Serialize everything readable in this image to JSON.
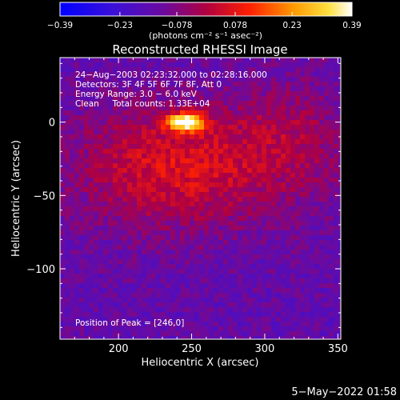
{
  "chart_data": {
    "type": "heatmap",
    "title": "Reconstructed RHESSI Image",
    "colorbar": {
      "tick_labels": [
        "−0.39",
        "−0.23",
        "−0.078",
        "0.078",
        "0.23",
        "0.39"
      ],
      "tick_values": [
        -0.39,
        -0.23,
        -0.078,
        0.078,
        0.23,
        0.39
      ],
      "range": [
        -0.39,
        0.39
      ],
      "units_label": "(photons cm⁻² s⁻¹ asec⁻²)",
      "colormap": "blue-purple-red-yellow-white"
    },
    "xlabel": "Heliocentric X (arcsec)",
    "ylabel": "Heliocentric Y (arcsec)",
    "xlim": [
      160,
      352
    ],
    "ylim": [
      -148,
      44
    ],
    "x_ticks": [
      200,
      250,
      300,
      350
    ],
    "y_ticks": [
      0,
      -50,
      -100
    ],
    "x_tick_labels": [
      "200",
      "250",
      "300",
      "350"
    ],
    "y_tick_labels": [
      "0",
      "−50",
      "−100"
    ],
    "annotations": [
      "24−Aug−2003 02:23:32.000 to 02:28:16.000",
      "Detectors: 3F 4F 5F 6F 7F 8F, Att 0",
      "Energy Range: 3.0 − 6.0 keV",
      "Clean     Total counts: 1.33E+04"
    ],
    "peak_label": "Position of Peak = [246,0]",
    "peak": {
      "x": 246,
      "y": 0,
      "value": 0.39
    }
  },
  "footer": {
    "timestamp": "5−May−2022 01:58"
  }
}
